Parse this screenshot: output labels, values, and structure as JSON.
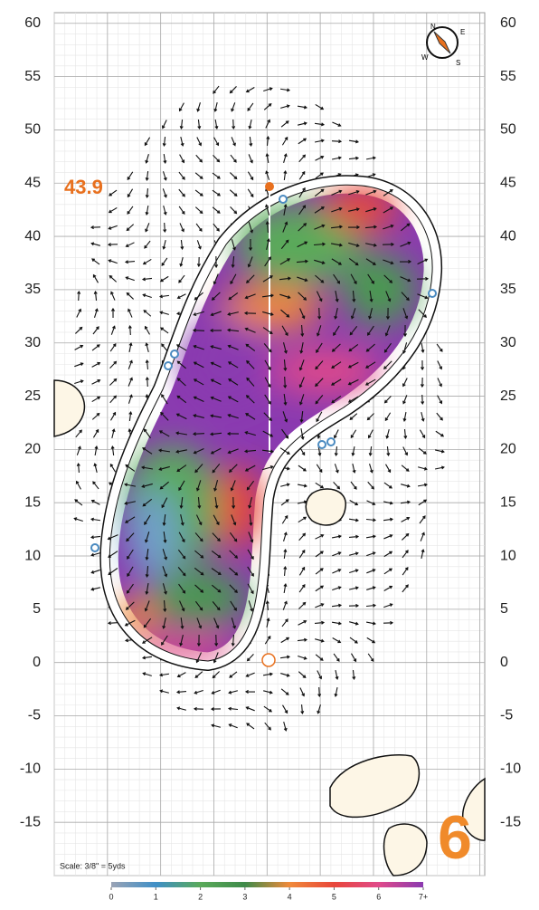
{
  "chart_data": {
    "type": "green-map",
    "ylim": [
      -20,
      61
    ],
    "yticks": [
      60,
      55,
      50,
      45,
      40,
      35,
      30,
      25,
      20,
      15,
      10,
      5,
      0,
      -5,
      -10,
      -15
    ],
    "elevation": 43.9,
    "hole": 6,
    "scale": "Scale: 3/8\" = 5yds",
    "compass": [
      "N",
      "E",
      "S",
      "W"
    ],
    "colorbar": {
      "ticks": [
        0,
        1,
        2,
        3,
        4,
        5,
        6,
        {
          "value": 7,
          "label": "7+"
        }
      ],
      "colors": [
        "#9aa3b5",
        "#3f8fc7",
        "#5aaa5a",
        "#3f8a4a",
        "#f08a3a",
        "#e8463a",
        "#e04a8a",
        "#8a3ab0"
      ]
    }
  }
}
